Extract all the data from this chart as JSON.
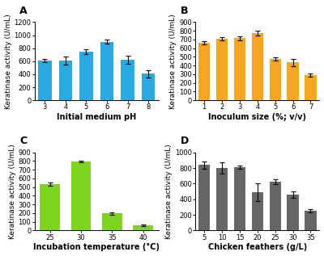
{
  "A": {
    "x": [
      3,
      4,
      5,
      6,
      7,
      8
    ],
    "y": [
      610,
      610,
      745,
      900,
      625,
      410
    ],
    "yerr": [
      25,
      65,
      35,
      30,
      60,
      55
    ],
    "color": "#29ABE2",
    "xlabel": "Initial medium pH",
    "ylabel": "Keratinase activity (U/mL)",
    "ylim": [
      0,
      1200
    ],
    "yticks": [
      0,
      200,
      400,
      600,
      800,
      1000,
      1200
    ],
    "label": "A"
  },
  "B": {
    "x": [
      1,
      2,
      3,
      4,
      5,
      6,
      7
    ],
    "y": [
      665,
      710,
      715,
      775,
      475,
      435,
      290
    ],
    "yerr": [
      20,
      20,
      25,
      25,
      20,
      45,
      18
    ],
    "color": "#F5A623",
    "xlabel": "Inoculum size (%; v/v)",
    "ylabel": "Keratinase activity (U/mL)",
    "ylim": [
      0,
      900
    ],
    "yticks": [
      0,
      100,
      200,
      300,
      400,
      500,
      600,
      700,
      800,
      900
    ],
    "label": "B"
  },
  "C": {
    "x": [
      25,
      30,
      35,
      40
    ],
    "y": [
      535,
      795,
      195,
      60
    ],
    "yerr": [
      18,
      12,
      15,
      10
    ],
    "color": "#7ED321",
    "xlabel": "Incubation temperature (°C)",
    "ylabel": "Keratinase activity (U/mL)",
    "ylim": [
      0,
      900
    ],
    "yticks": [
      0,
      100,
      200,
      300,
      400,
      500,
      600,
      700,
      800,
      900
    ],
    "label": "C"
  },
  "D": {
    "x": [
      5,
      10,
      15,
      20,
      25,
      30,
      35
    ],
    "y": [
      840,
      800,
      810,
      490,
      625,
      460,
      250
    ],
    "yerr": [
      45,
      75,
      20,
      110,
      35,
      45,
      20
    ],
    "color": "#666666",
    "xlabel": "Chicken feathers (g/L)",
    "ylabel": "Keratinase activity (U/mL)",
    "ylim": [
      0,
      1000
    ],
    "yticks": [
      0,
      200,
      400,
      600,
      800,
      1000
    ],
    "label": "D"
  },
  "background": "#ffffff",
  "tick_fontsize": 6,
  "xlabel_fontsize": 7,
  "ylabel_fontsize": 6.5,
  "label_fontsize": 9
}
